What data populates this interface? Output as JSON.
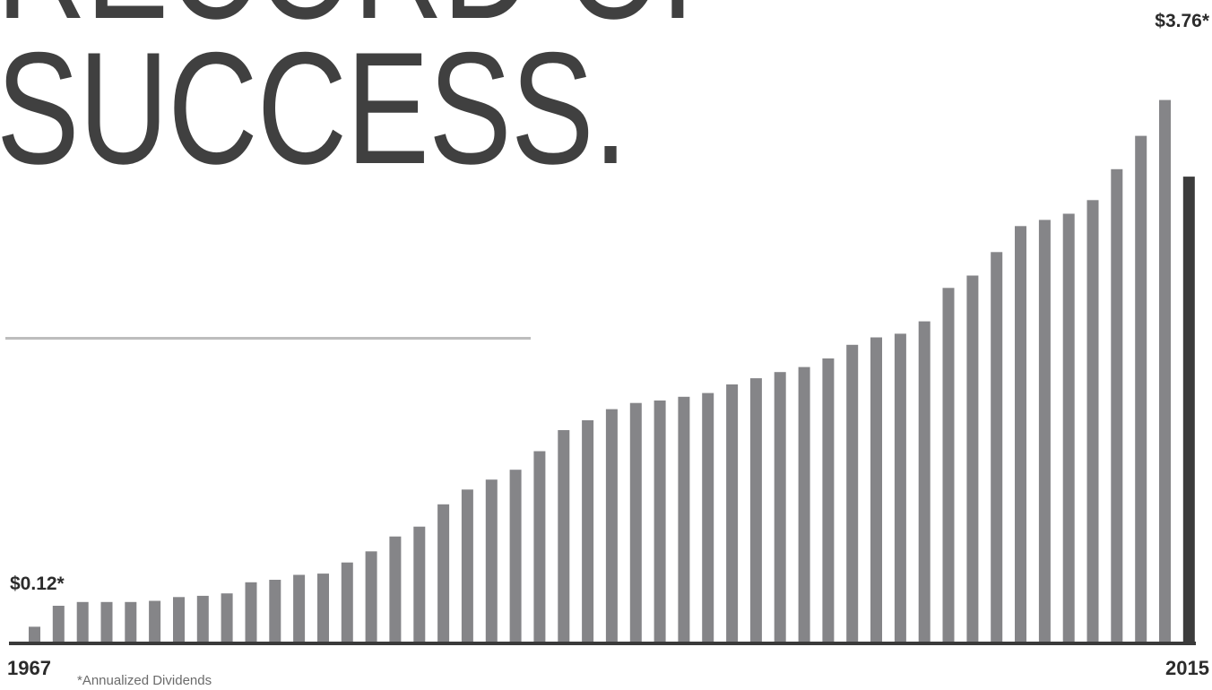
{
  "headline": {
    "line1": "RECORD OF",
    "line2": "SUCCESS."
  },
  "labels": {
    "start_value": "$0.12*",
    "end_value": "$3.76*",
    "start_year": "1967",
    "end_year": "2015",
    "footnote": "*Annualized Dividends"
  },
  "colors": {
    "bar": "#858588",
    "highlight_bar": "#3c3c3c",
    "baseline": "#3a3a3a",
    "headline": "#404040"
  },
  "chart_data": {
    "type": "bar",
    "x_start": 1967,
    "x_end": 2015,
    "values": [
      0.12,
      0.29,
      0.32,
      0.32,
      0.32,
      0.33,
      0.36,
      0.37,
      0.39,
      0.48,
      0.5,
      0.54,
      0.55,
      0.64,
      0.73,
      0.85,
      0.93,
      1.11,
      1.23,
      1.31,
      1.39,
      1.54,
      1.71,
      1.79,
      1.88,
      1.93,
      1.95,
      1.98,
      2.01,
      2.08,
      2.13,
      2.18,
      2.22,
      2.29,
      2.4,
      2.46,
      2.49,
      2.59,
      2.86,
      2.96,
      3.15,
      3.36,
      3.41,
      3.46,
      3.57,
      3.82,
      4.09,
      4.38,
      3.76
    ],
    "highlight_index": 48,
    "annotations": [
      {
        "year": 1967,
        "text": "$0.12*"
      },
      {
        "year": 2015,
        "text": "$3.76*"
      }
    ],
    "note": "*Annualized Dividends",
    "grid": false,
    "legend": "none"
  }
}
